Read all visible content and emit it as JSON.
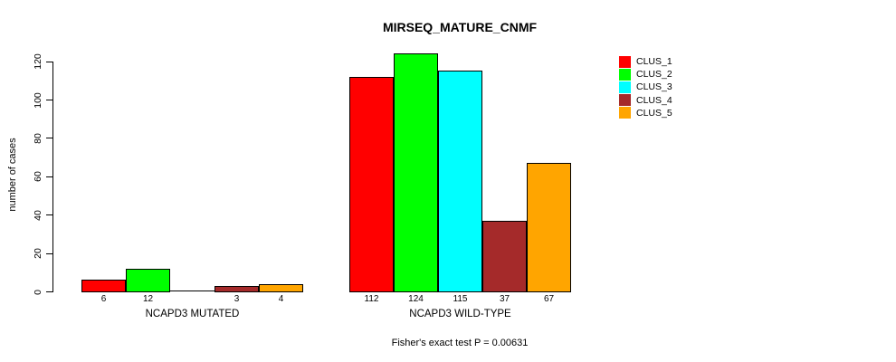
{
  "chart_data": {
    "type": "bar",
    "title": "MIRSEQ_MATURE_CNMF",
    "ylabel": "number of cases",
    "footer": "Fisher's exact test P = 0.00631",
    "yticks": [
      0,
      20,
      40,
      60,
      80,
      100,
      120
    ],
    "ylim": [
      0,
      124
    ],
    "grid": false,
    "legend_position": "right",
    "clusters": [
      {
        "name": "CLUS_1",
        "color": "#FF0000"
      },
      {
        "name": "CLUS_2",
        "color": "#00FF00"
      },
      {
        "name": "CLUS_3",
        "color": "#00FFFF"
      },
      {
        "name": "CLUS_4",
        "color": "#A52A2A"
      },
      {
        "name": "CLUS_5",
        "color": "#FFA500"
      }
    ],
    "groups": [
      {
        "label": "NCAPD3 MUTATED",
        "values": [
          6,
          12,
          0,
          3,
          4
        ],
        "bar_labels": [
          "6",
          "12",
          "",
          "3",
          "4"
        ]
      },
      {
        "label": "NCAPD3 WILD-TYPE",
        "values": [
          112,
          124,
          115,
          37,
          67
        ],
        "bar_labels": [
          "112",
          "124",
          "115",
          "37",
          "67"
        ]
      }
    ]
  }
}
